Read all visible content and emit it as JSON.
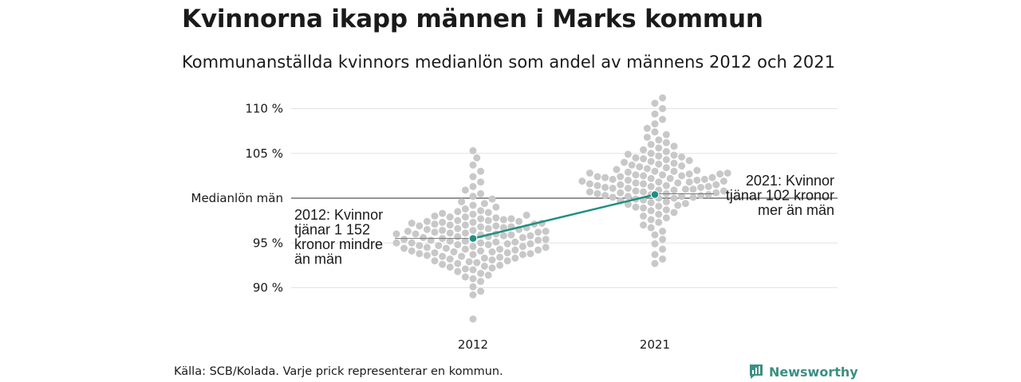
{
  "title": "Kvinnorna ikapp männen i Marks kommun",
  "subtitle": "Kommunanställda kvinnors medianlön som andel av männens 2012 och 2021",
  "source": "Källa: SCB/Kolada. Varje prick representerar en kommun.",
  "logo_text": "Newsworthy",
  "colors": {
    "dots": "#c8c8c8",
    "highlight": "#1f9080",
    "grid": "#e3e3e3",
    "reference": "#555555"
  },
  "chart_data": {
    "type": "scatter",
    "title": "Kvinnorna ikapp männen i Marks kommun",
    "subtitle": "Kommunanställda kvinnors medianlön som andel av männens 2012 och 2021",
    "categories": [
      "2012",
      "2021"
    ],
    "y_ticks": [
      {
        "value": 90,
        "label": "90 %"
      },
      {
        "value": 95,
        "label": "95 %"
      },
      {
        "value": 100,
        "label": "Medianlön män"
      },
      {
        "value": 105,
        "label": "105 %"
      },
      {
        "value": 110,
        "label": "110 %"
      }
    ],
    "ylim": [
      86,
      111.5
    ],
    "grid": true,
    "reference_line": 100,
    "series": [
      {
        "name": "2012",
        "values": [
          86.5,
          89.2,
          89.6,
          90.1,
          90.7,
          91.0,
          91.2,
          91.4,
          91.6,
          91.8,
          92.0,
          92.1,
          92.2,
          92.3,
          92.4,
          92.5,
          92.6,
          92.7,
          92.8,
          92.9,
          93.0,
          93.0,
          93.1,
          93.2,
          93.3,
          93.3,
          93.4,
          93.5,
          93.5,
          93.6,
          93.7,
          93.7,
          93.8,
          93.8,
          93.9,
          93.9,
          94.0,
          94.0,
          94.1,
          94.1,
          94.2,
          94.2,
          94.3,
          94.3,
          94.4,
          94.4,
          94.5,
          94.5,
          94.6,
          94.6,
          94.7,
          94.7,
          94.8,
          94.8,
          94.9,
          94.9,
          95.0,
          95.0,
          95.0,
          95.1,
          95.1,
          95.2,
          95.2,
          95.3,
          95.3,
          95.4,
          95.4,
          95.5,
          95.5,
          95.6,
          95.6,
          95.7,
          95.7,
          95.8,
          95.8,
          95.9,
          95.9,
          96.0,
          96.0,
          96.0,
          96.1,
          96.1,
          96.2,
          96.2,
          96.3,
          96.3,
          96.4,
          96.4,
          96.5,
          96.5,
          96.6,
          96.6,
          96.7,
          96.7,
          96.8,
          96.8,
          96.9,
          96.9,
          97.0,
          97.0,
          97.1,
          97.1,
          97.2,
          97.2,
          97.3,
          97.3,
          97.4,
          97.4,
          97.5,
          97.5,
          97.6,
          97.7,
          97.7,
          97.8,
          97.9,
          97.9,
          98.0,
          98.1,
          98.2,
          98.3,
          98.4,
          98.5,
          98.6,
          98.8,
          99.0,
          99.2,
          99.4,
          99.6,
          99.9,
          100.2,
          100.5,
          100.9,
          101.3,
          101.8,
          102.4,
          103.0,
          103.7,
          104.5,
          105.3
        ],
        "highlight": {
          "value": 95.5,
          "label": "2012: Kvinnor tjänar 1 152 kronor mindre än män"
        }
      },
      {
        "name": "2021",
        "values": [
          92.7,
          93.2,
          93.7,
          94.3,
          94.9,
          95.4,
          95.9,
          96.3,
          96.7,
          97.0,
          97.3,
          97.6,
          97.8,
          98.0,
          98.2,
          98.4,
          98.6,
          98.7,
          98.9,
          99.0,
          99.1,
          99.2,
          99.3,
          99.4,
          99.5,
          99.6,
          99.7,
          99.8,
          99.9,
          100.0,
          100.0,
          100.1,
          100.1,
          100.2,
          100.2,
          100.3,
          100.3,
          100.4,
          100.4,
          100.5,
          100.5,
          100.6,
          100.6,
          100.7,
          100.7,
          100.8,
          100.8,
          100.9,
          100.9,
          101.0,
          101.0,
          101.1,
          101.1,
          101.2,
          101.2,
          101.3,
          101.3,
          101.4,
          101.4,
          101.5,
          101.5,
          101.6,
          101.6,
          101.7,
          101.7,
          101.8,
          101.8,
          101.9,
          101.9,
          102.0,
          102.0,
          102.1,
          102.1,
          102.2,
          102.2,
          102.3,
          102.3,
          102.4,
          102.4,
          102.5,
          102.5,
          102.6,
          102.6,
          102.7,
          102.7,
          102.8,
          102.8,
          102.9,
          103.0,
          103.0,
          103.1,
          103.2,
          103.3,
          103.4,
          103.5,
          103.6,
          103.7,
          103.8,
          103.9,
          104.0,
          104.1,
          104.2,
          104.3,
          104.4,
          104.5,
          104.6,
          104.7,
          104.8,
          104.9,
          105.0,
          105.2,
          105.4,
          105.6,
          105.8,
          106.0,
          106.2,
          106.5,
          106.8,
          107.1,
          107.4,
          107.8,
          108.3,
          108.8,
          109.4,
          110.0,
          110.6,
          111.2
        ],
        "highlight": {
          "value": 100.4,
          "label": "2021: Kvinnor tjänar 102 kronor mer än män"
        }
      }
    ],
    "annotations": [
      {
        "category": "2012",
        "side": "left",
        "lines": [
          "2012: Kvinnor",
          "tjänar 1 152",
          "kronor mindre",
          "än män"
        ]
      },
      {
        "category": "2021",
        "side": "right",
        "lines": [
          "2021: Kvinnor",
          "tjänar 102 kronor",
          "mer än män"
        ]
      }
    ]
  }
}
